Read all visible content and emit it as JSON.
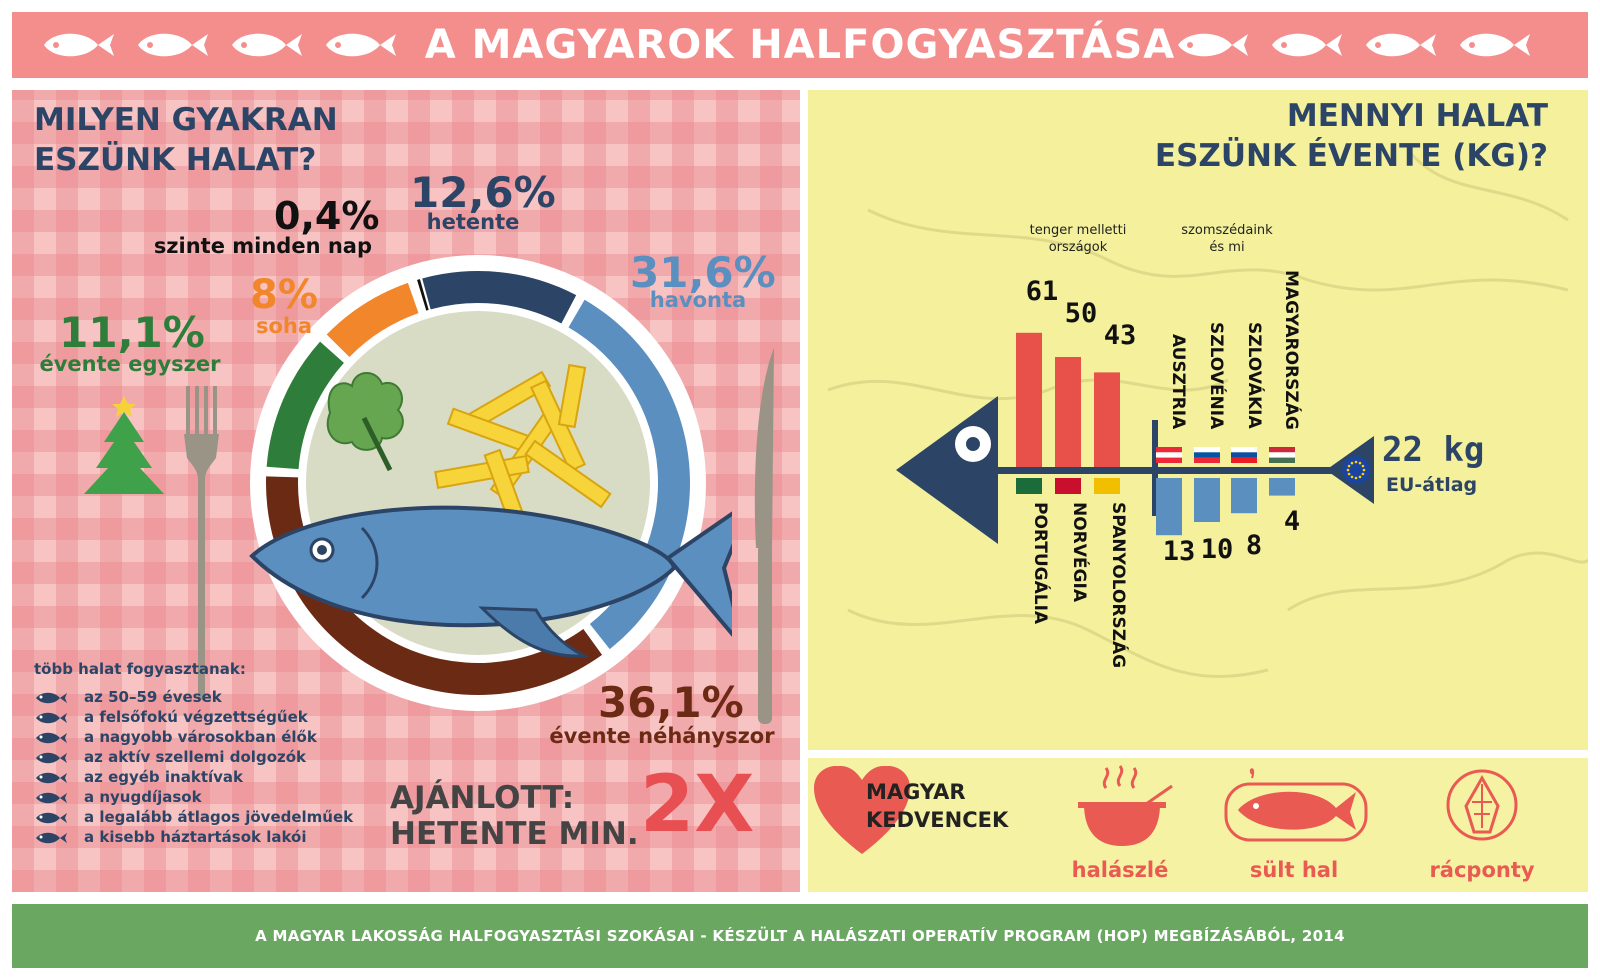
{
  "header": {
    "title": "A MAGYAROK HALFOGYASZTÁSA"
  },
  "colors": {
    "header_bg": "#f48e8c",
    "footer_bg": "#6aa862",
    "navy": "#2c4566",
    "bar_red": "#e8504a",
    "bar_blue": "#5b8fc0"
  },
  "left": {
    "title_line1": "MILYEN GYAKRAN",
    "title_line2": "ESZÜNK HALAT?",
    "frequency": [
      {
        "value": "0,4%",
        "label": "szinte minden nap",
        "share": 0.4
      },
      {
        "value": "12,6%",
        "label": "hetente",
        "share": 12.6
      },
      {
        "value": "31,6%",
        "label": "havonta",
        "share": 31.6
      },
      {
        "value": "36,1%",
        "label": "évente néhányszor",
        "share": 36.1
      },
      {
        "value": "11,1%",
        "label": "évente egyszer",
        "share": 11.1
      },
      {
        "value": "8%",
        "label": "soha",
        "share": 8
      }
    ],
    "more_title": "több halat fogyasztanak:",
    "more_items": [
      "az 50–59 évesek",
      "a felsőfokú végzettségűek",
      "a nagyobb városokban élők",
      "az aktív szellemi dolgozók",
      "az egyéb inaktívak",
      "a nyugdíjasok",
      "a legalább átlagos jövedelműek",
      "a kisebb háztartások lakói"
    ],
    "recommended_line1": "AJÁNLOTT:",
    "recommended_line2": "HETENTE MIN.",
    "recommended_value": "2X"
  },
  "right": {
    "title_line1": "MENNYI HALAT",
    "title_line2": "ESZÜNK ÉVENTE (KG)?",
    "group_sea": "tenger melletti országok",
    "group_neighbors": "szomszédaink és mi",
    "sea_countries": [
      {
        "name": "PORTUGÁLIA",
        "value": 61
      },
      {
        "name": "NORVÉGIA",
        "value": 50
      },
      {
        "name": "SPANYOLORSZÁG",
        "value": 43
      }
    ],
    "neighbor_countries": [
      {
        "name": "AUSZTRIA",
        "value": 13
      },
      {
        "name": "SZLOVÉNIA",
        "value": 10
      },
      {
        "name": "SZLOVÁKIA",
        "value": 8
      },
      {
        "name": "MAGYARORSZÁG",
        "value": 4
      }
    ],
    "eu_value": "22 kg",
    "eu_label": "EU-átlag"
  },
  "favorites": {
    "title_line1": "MAGYAR",
    "title_line2": "KEDVENCEK",
    "items": [
      "halászlé",
      "sült hal",
      "rácponty"
    ]
  },
  "footer": {
    "text": "A MAGYAR LAKOSSÁG HALFOGYASZTÁSI SZOKÁSAI - KÉSZÜLT A HALÁSZATI OPERATÍV PROGRAM (HOP) MEGBÍZÁSÁBÓL, 2014"
  }
}
